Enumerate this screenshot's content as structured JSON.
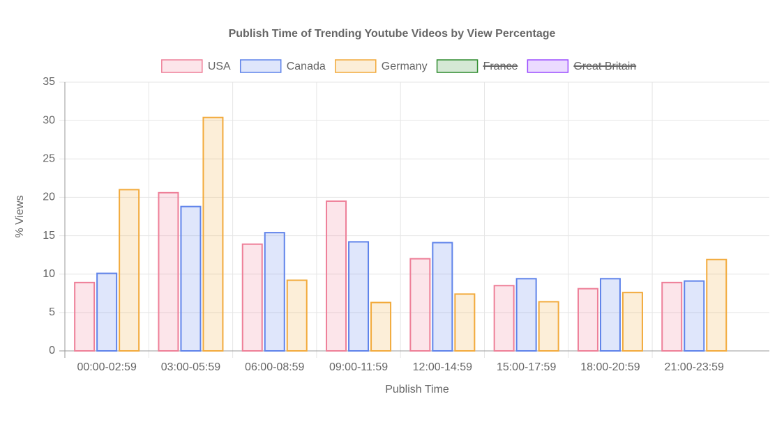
{
  "chart_data": {
    "type": "bar",
    "title": "Publish Time of Trending Youtube Videos by View Percentage",
    "x_label": "Publish Time",
    "y_label": "% Views",
    "categories": [
      "00:00-02:59",
      "03:00-05:59",
      "06:00-08:59",
      "09:00-11:59",
      "12:00-14:59",
      "15:00-17:59",
      "18:00-20:59",
      "21:00-23:59"
    ],
    "series": [
      {
        "name": "USA",
        "color": "#ee7f98",
        "values": [
          8.9,
          20.6,
          13.9,
          19.5,
          12.0,
          8.5,
          8.1,
          8.9
        ]
      },
      {
        "name": "Canada",
        "color": "#5f83ea",
        "values": [
          10.1,
          18.8,
          15.4,
          14.2,
          14.1,
          9.4,
          9.4,
          9.1
        ]
      },
      {
        "name": "Germany",
        "color": "#f2aa3c",
        "values": [
          21.0,
          30.4,
          9.2,
          6.3,
          7.4,
          6.4,
          7.6,
          11.9
        ]
      },
      {
        "name": "France",
        "color": "#2e8b2e",
        "hidden": true
      },
      {
        "name": "Great Britain",
        "color": "#9b4dff",
        "hidden": true
      }
    ],
    "ylim": [
      0,
      35
    ],
    "yticks": [
      0,
      5,
      10,
      15,
      20,
      25,
      30,
      35
    ],
    "grid": true,
    "legend": "top"
  }
}
